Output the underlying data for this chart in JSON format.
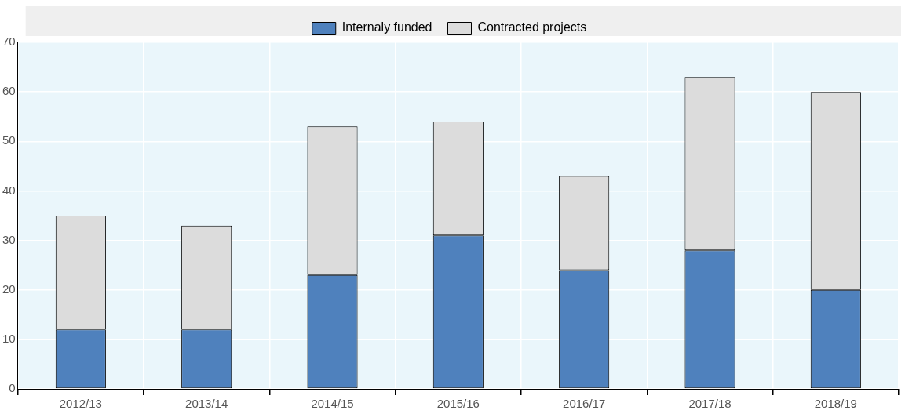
{
  "chart_data": {
    "type": "bar",
    "stacked": true,
    "categories": [
      "2012/13",
      "2013/14",
      "2014/15",
      "2015/16",
      "2016/17",
      "2017/18",
      "2018/19"
    ],
    "series": [
      {
        "name": "Internaly funded",
        "color": "#4f81bd",
        "values": [
          12,
          12,
          23,
          31,
          24,
          28,
          20
        ]
      },
      {
        "name": "Contracted projects",
        "color": "#dcdcdc",
        "values": [
          23,
          21,
          30,
          23,
          19,
          35,
          40
        ]
      }
    ],
    "ylim": [
      0,
      70
    ],
    "yticks": [
      0,
      10,
      20,
      30,
      40,
      50,
      60,
      70
    ],
    "grid": true,
    "legend": "top"
  }
}
